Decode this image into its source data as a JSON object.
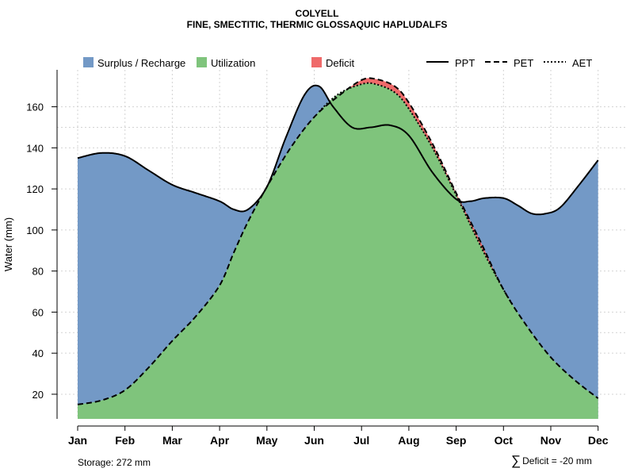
{
  "title_line1": "COLYELL",
  "title_line2": "FINE, SMECTITIC, THERMIC GLOSSAQUIC HAPLUDALFS",
  "footer": {
    "storage_label": "Storage: 272 mm",
    "deficit_symbol": "∑",
    "deficit_label": "Deficit = -20 mm"
  },
  "chart_data": {
    "type": "area",
    "ylabel": "Water (mm)",
    "xlabel": "",
    "months": [
      "Jan",
      "Feb",
      "Mar",
      "Apr",
      "May",
      "Jun",
      "Jul",
      "Aug",
      "Sep",
      "Oct",
      "Nov",
      "Dec"
    ],
    "ylim": [
      8,
      178
    ],
    "yticks": [
      20,
      40,
      60,
      80,
      100,
      120,
      140,
      160
    ],
    "ygrid": [
      50,
      150
    ],
    "legend": {
      "fills": [
        {
          "label": "Surplus / Recharge",
          "color": "#7399C6"
        },
        {
          "label": "Utilization",
          "color": "#7FC47C"
        },
        {
          "label": "Deficit",
          "color": "#EF6A6A"
        }
      ],
      "lines": [
        {
          "label": "PPT",
          "dash": "solid"
        },
        {
          "label": "PET",
          "dash": "dashed"
        },
        {
          "label": "AET",
          "dash": "dotted"
        }
      ]
    },
    "series": [
      {
        "name": "PPT",
        "points": [
          [
            0,
            135
          ],
          [
            0.5,
            137.5
          ],
          [
            1,
            136
          ],
          [
            1.5,
            129
          ],
          [
            2,
            122
          ],
          [
            2.5,
            118
          ],
          [
            3,
            114
          ],
          [
            3.3,
            110
          ],
          [
            3.6,
            110
          ],
          [
            4,
            121
          ],
          [
            4.4,
            145
          ],
          [
            4.8,
            166
          ],
          [
            5.1,
            170
          ],
          [
            5.4,
            160
          ],
          [
            5.8,
            150
          ],
          [
            6.2,
            150
          ],
          [
            6.6,
            151
          ],
          [
            7,
            146
          ],
          [
            7.5,
            128
          ],
          [
            8,
            115
          ],
          [
            8.3,
            114
          ],
          [
            8.6,
            115.5
          ],
          [
            9,
            115.5
          ],
          [
            9.3,
            112
          ],
          [
            9.6,
            108
          ],
          [
            9.9,
            108
          ],
          [
            10.2,
            111
          ],
          [
            10.6,
            122
          ],
          [
            11,
            134
          ]
        ]
      },
      {
        "name": "PET",
        "points": [
          [
            0,
            15
          ],
          [
            0.5,
            17
          ],
          [
            1,
            22
          ],
          [
            1.5,
            33
          ],
          [
            2,
            46
          ],
          [
            2.5,
            58
          ],
          [
            3,
            73
          ],
          [
            3.3,
            89
          ],
          [
            3.6,
            104
          ],
          [
            4,
            121
          ],
          [
            4.5,
            140
          ],
          [
            5,
            155
          ],
          [
            5.5,
            165
          ],
          [
            6,
            173
          ],
          [
            6.3,
            173.5
          ],
          [
            6.7,
            170
          ],
          [
            7,
            162
          ],
          [
            7.5,
            142
          ],
          [
            8,
            118
          ],
          [
            8.5,
            95
          ],
          [
            9,
            71
          ],
          [
            9.5,
            53
          ],
          [
            10,
            38
          ],
          [
            10.5,
            27
          ],
          [
            11,
            18
          ]
        ]
      },
      {
        "name": "AET",
        "points": [
          [
            0,
            15
          ],
          [
            0.5,
            17
          ],
          [
            1,
            22
          ],
          [
            1.5,
            33
          ],
          [
            2,
            46
          ],
          [
            2.5,
            58
          ],
          [
            3,
            73
          ],
          [
            3.3,
            89
          ],
          [
            3.6,
            104
          ],
          [
            4,
            121
          ],
          [
            4.5,
            140
          ],
          [
            5,
            155
          ],
          [
            5.5,
            166
          ],
          [
            6,
            171
          ],
          [
            6.3,
            171
          ],
          [
            6.7,
            167
          ],
          [
            7,
            159
          ],
          [
            7.5,
            140
          ],
          [
            8,
            117
          ],
          [
            8.5,
            93
          ],
          [
            9,
            71
          ],
          [
            9.5,
            53
          ],
          [
            10,
            38
          ],
          [
            10.5,
            27
          ],
          [
            11,
            18
          ]
        ]
      }
    ],
    "baseline": 8
  }
}
